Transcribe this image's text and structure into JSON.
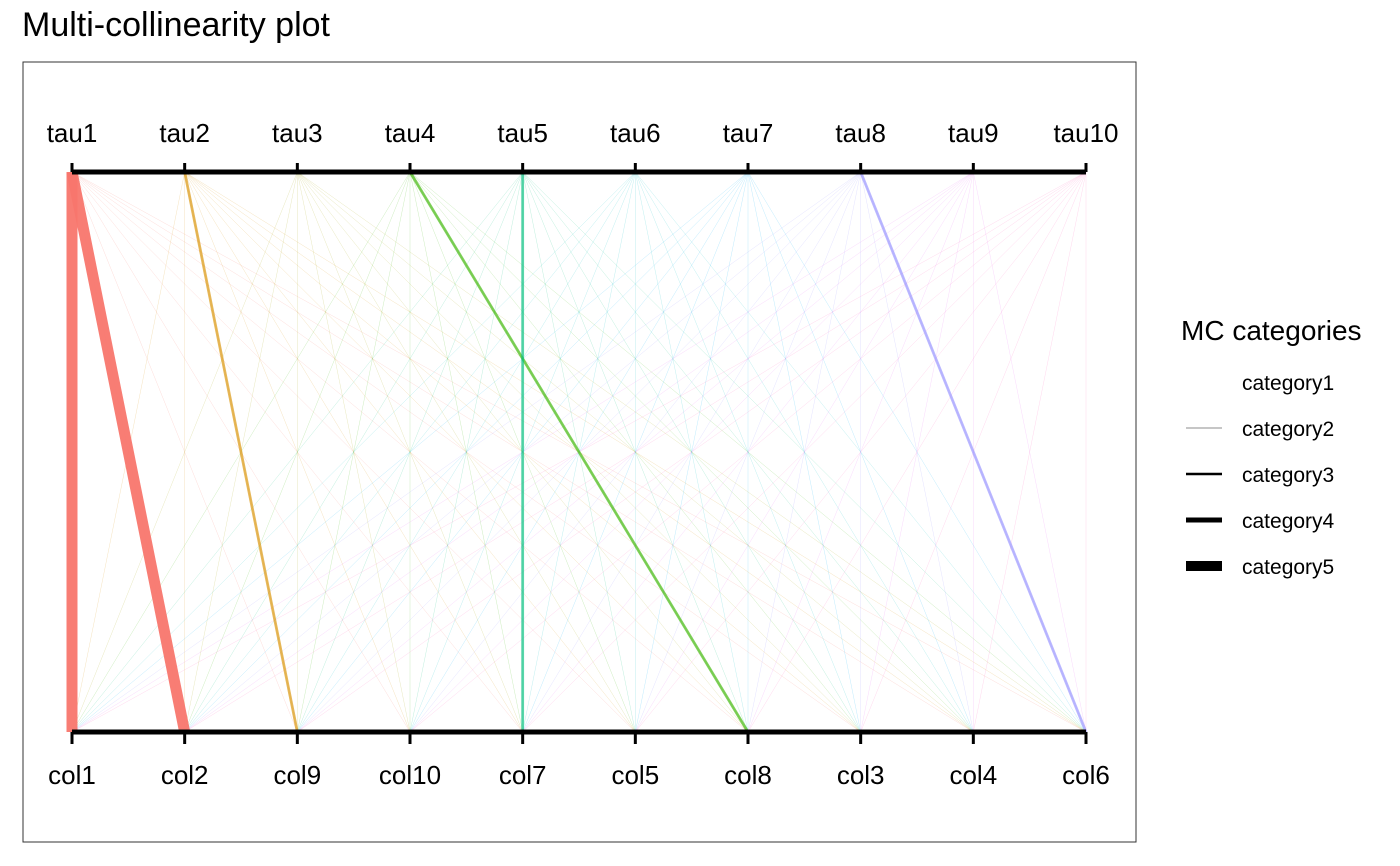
{
  "chart_data": {
    "type": "parallel-coordinates",
    "title": "Multi-collinearity plot",
    "top_axis": [
      "tau1",
      "tau2",
      "tau3",
      "tau4",
      "tau5",
      "tau6",
      "tau7",
      "tau8",
      "tau9",
      "tau10"
    ],
    "bottom_axis": [
      "col1",
      "col2",
      "col9",
      "col10",
      "col7",
      "col5",
      "col8",
      "col3",
      "col4",
      "col6"
    ],
    "tau_colors": [
      "#F8766D",
      "#D89000",
      "#A3A500",
      "#39B600",
      "#00BF7D",
      "#00BFC4",
      "#00B0F6",
      "#9590FF",
      "#E76BF3",
      "#FF62BC"
    ],
    "links_all_pairs_category": "category1",
    "strong_links": [
      {
        "from": "tau1",
        "to": "col1",
        "category": "category5"
      },
      {
        "from": "tau1",
        "to": "col2",
        "category": "category5"
      },
      {
        "from": "tau2",
        "to": "col9",
        "category": "category3"
      },
      {
        "from": "tau4",
        "to": "col8",
        "category": "category3"
      },
      {
        "from": "tau5",
        "to": "col7",
        "category": "category3"
      },
      {
        "from": "tau8",
        "to": "col6",
        "category": "category3"
      }
    ],
    "legend": {
      "title": "MC categories",
      "placement": "right",
      "items": [
        "category1",
        "category2",
        "category3",
        "category4",
        "category5"
      ]
    }
  }
}
